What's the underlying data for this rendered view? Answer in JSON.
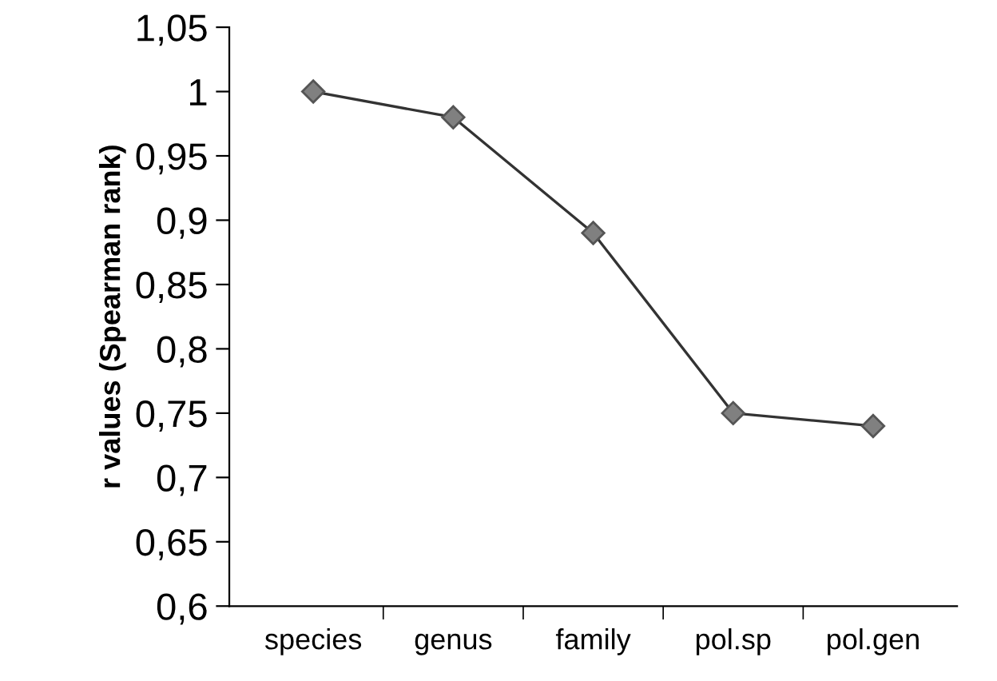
{
  "chart_data": {
    "type": "line",
    "ylabel": "r values (Spearman rank)",
    "categories": [
      "species",
      "genus",
      "family",
      "pol.sp",
      "pol.gen"
    ],
    "series": [
      {
        "color": "#333333",
        "values": [
          1.0,
          0.98,
          0.89,
          0.75,
          0.74
        ]
      }
    ],
    "ylim": [
      0.6,
      1.05
    ],
    "yticks": [
      {
        "value": 0.6,
        "label": "0,6"
      },
      {
        "value": 0.65,
        "label": "0,65"
      },
      {
        "value": 0.7,
        "label": "0,7"
      },
      {
        "value": 0.75,
        "label": "0,75"
      },
      {
        "value": 0.8,
        "label": "0,8"
      },
      {
        "value": 0.85,
        "label": "0,85"
      },
      {
        "value": 0.9,
        "label": "0,9"
      },
      {
        "value": 0.95,
        "label": "0,95"
      },
      {
        "value": 1,
        "label": "1"
      },
      {
        "value": 1.05,
        "label": "1,05"
      }
    ],
    "marker": "diamond",
    "line_style": "solid",
    "grid": false
  }
}
